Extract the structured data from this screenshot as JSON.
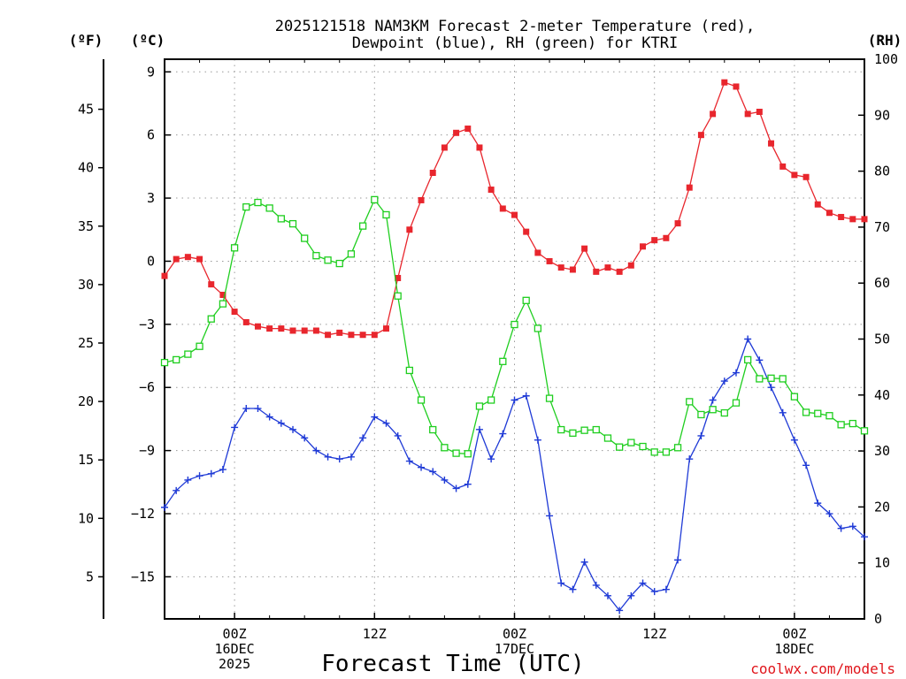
{
  "chart_data": {
    "type": "line",
    "title_line1": "2025121518 NAM3KM Forecast 2-meter Temperature (red),",
    "title_line2": "Dewpoint (blue), RH (green) for KTRI",
    "unit_f": "(ºF)",
    "unit_c": "(ºC)",
    "unit_rh": "(RH)",
    "xlabel": "Forecast Time (UTC)",
    "credit": "coolwx.com/models",
    "x_hours_range": [
      -6,
      54
    ],
    "x_ticks": [
      {
        "hour": 0,
        "lines": [
          "00Z",
          "16DEC",
          "2025"
        ]
      },
      {
        "hour": 12,
        "lines": [
          "12Z"
        ]
      },
      {
        "hour": 24,
        "lines": [
          "00Z",
          "17DEC"
        ]
      },
      {
        "hour": 36,
        "lines": [
          "12Z"
        ]
      },
      {
        "hour": 48,
        "lines": [
          "00Z",
          "18DEC"
        ]
      }
    ],
    "celsius_axis": {
      "range": [
        -17,
        9.6
      ],
      "ticks": [
        9,
        6,
        3,
        0,
        -3,
        -6,
        -9,
        -12,
        -15
      ],
      "tick_labels": [
        "9",
        "6",
        "3",
        "0",
        "−3",
        "−6",
        "−9",
        "−12",
        "−15"
      ]
    },
    "fahrenheit_axis": {
      "ticks": [
        45,
        40,
        35,
        30,
        25,
        20,
        15,
        10,
        5
      ],
      "tick_labels": [
        "45",
        "40",
        "35",
        "30",
        "25",
        "20",
        "15",
        "10",
        "5"
      ]
    },
    "rh_axis": {
      "range": [
        0,
        100
      ],
      "ticks": [
        100,
        90,
        80,
        70,
        60,
        50,
        40,
        30,
        20,
        10,
        0
      ],
      "tick_labels": [
        "100",
        "90",
        "80",
        "70",
        "60",
        "50",
        "40",
        "30",
        "20",
        "10",
        "0"
      ]
    },
    "hours": [
      -6,
      -5,
      -4,
      -3,
      -2,
      -1,
      0,
      1,
      2,
      3,
      4,
      5,
      6,
      7,
      8,
      9,
      10,
      11,
      12,
      13,
      14,
      15,
      16,
      17,
      18,
      19,
      20,
      21,
      22,
      23,
      24,
      25,
      26,
      27,
      28,
      29,
      30,
      31,
      32,
      33,
      34,
      35,
      36,
      37,
      38,
      39,
      40,
      41,
      42,
      43,
      44,
      45,
      46,
      47,
      48,
      49,
      50,
      51,
      52,
      53,
      54
    ],
    "series": [
      {
        "name": "2-meter Temperature",
        "unit": "C",
        "color": "#e8262d",
        "marker": "filled-square",
        "values": [
          -0.7,
          0.1,
          0.2,
          0.1,
          -1.1,
          -1.6,
          -2.4,
          -2.9,
          -3.1,
          -3.2,
          -3.2,
          -3.3,
          -3.3,
          -3.3,
          -3.5,
          -3.4,
          -3.5,
          -3.5,
          -3.5,
          -3.2,
          -0.8,
          1.5,
          2.9,
          4.2,
          5.4,
          6.1,
          6.3,
          5.4,
          3.4,
          2.5,
          2.2,
          1.4,
          0.4,
          0.0,
          -0.3,
          -0.4,
          0.6,
          -0.5,
          -0.3,
          -0.5,
          -0.2,
          0.7,
          1.0,
          1.1,
          1.8,
          3.5,
          6.0,
          7.0,
          8.5,
          8.3,
          7.0,
          7.1,
          5.6,
          4.5,
          4.1,
          4.0,
          2.7,
          2.3,
          2.1,
          2.0,
          2.0
        ]
      },
      {
        "name": "Dewpoint",
        "unit": "C",
        "color": "#1f3ad6",
        "marker": "plus",
        "values": [
          -11.7,
          -10.9,
          -10.4,
          -10.2,
          -10.1,
          -9.9,
          -7.9,
          -7.0,
          -7.0,
          -7.4,
          -7.7,
          -8.0,
          -8.4,
          -9.0,
          -9.3,
          -9.4,
          -9.3,
          -8.4,
          -7.4,
          -7.7,
          -8.3,
          -9.5,
          -9.8,
          -10.0,
          -10.4,
          -10.8,
          -10.6,
          -8.0,
          -9.4,
          -8.2,
          -6.6,
          -6.4,
          -8.5,
          -12.1,
          -15.3,
          -15.6,
          -14.3,
          -15.4,
          -15.9,
          -16.6,
          -15.9,
          -15.3,
          -15.7,
          -15.6,
          -14.2,
          -9.4,
          -8.3,
          -6.6,
          -5.7,
          -5.3,
          -3.7,
          -4.7,
          -6.0,
          -7.2,
          -8.5,
          -9.7,
          -11.5,
          -12.0,
          -12.7,
          -12.6,
          -13.1
        ]
      },
      {
        "name": "RH",
        "unit": "%",
        "color": "#1fce1f",
        "marker": "open-square",
        "values": [
          45.8,
          46.3,
          47.3,
          48.7,
          53.6,
          56.3,
          66.3,
          73.6,
          74.4,
          73.4,
          71.5,
          70.6,
          68.0,
          64.9,
          64.1,
          63.5,
          65.2,
          70.2,
          74.9,
          72.2,
          57.7,
          44.4,
          39.1,
          33.8,
          30.6,
          29.6,
          29.5,
          38.0,
          39.1,
          46.0,
          52.6,
          56.9,
          51.9,
          39.4,
          33.8,
          33.2,
          33.7,
          33.8,
          32.3,
          30.7,
          31.5,
          30.8,
          29.8,
          29.8,
          30.6,
          38.8,
          36.5,
          37.4,
          36.8,
          38.6,
          46.3,
          42.9,
          43.0,
          42.9,
          39.7,
          36.9,
          36.7,
          36.3,
          34.7,
          34.9,
          33.6
        ]
      }
    ]
  }
}
